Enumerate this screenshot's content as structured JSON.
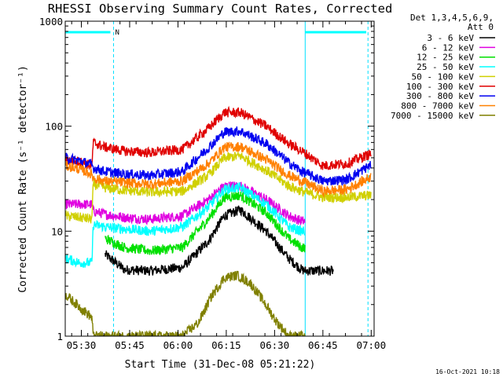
{
  "chart_data": {
    "type": "line",
    "title": "RHESSI Observing Summary Count Rates, Corrected",
    "xlabel": "Start Time (31-Dec-08 05:21:22)",
    "ylabel": "Corrected Count Rate (s⁻¹ detector⁻¹)",
    "yscale": "log",
    "ylim": [
      1,
      1000
    ],
    "xlim_minutes": [
      3.6,
      99.5
    ],
    "y_ticks": [
      {
        "value": 1,
        "label": "1"
      },
      {
        "value": 10,
        "label": "10"
      },
      {
        "value": 100,
        "label": "100"
      },
      {
        "value": 1000,
        "label": "1000"
      }
    ],
    "x_ticks": [
      {
        "minutes": 8.6,
        "label": "05:30"
      },
      {
        "minutes": 23.6,
        "label": "05:45"
      },
      {
        "minutes": 38.6,
        "label": "06:00"
      },
      {
        "minutes": 53.6,
        "label": "06:15"
      },
      {
        "minutes": 68.6,
        "label": "06:30"
      },
      {
        "minutes": 83.6,
        "label": "06:45"
      },
      {
        "minutes": 98.6,
        "label": "07:00"
      }
    ],
    "legend_header": [
      "Det 1,3,4,5,6,9,",
      "Att 0"
    ],
    "timestamp": "16-Oct-2021 10:18",
    "night_flag_label": "N",
    "night_boundaries_minutes": [
      18.6,
      97.6
    ],
    "saa_boundaries_minutes": [
      -2.4,
      78.1
    ],
    "series": [
      {
        "name": "3 - 6 keV",
        "color": "#000000",
        "x": [
          16,
          22,
          30,
          40,
          48,
          53,
          58,
          66,
          73,
          77,
          78.1,
          83.6,
          87
        ],
        "y": [
          6.0,
          4.3,
          4.2,
          4.5,
          8.0,
          14.0,
          16.0,
          10.0,
          5.5,
          4.3,
          4.2,
          4.2,
          4.2
        ]
      },
      {
        "name": "6 - 12 keV",
        "color": "#e000e0",
        "x": [
          -2.4,
          3.6,
          8,
          11.9,
          12.3,
          16,
          22,
          30,
          40,
          48,
          53,
          58,
          66,
          73,
          77,
          78.1
        ],
        "y": [
          18,
          18,
          18,
          18,
          15.5,
          14.5,
          13.5,
          13,
          14,
          20,
          27,
          27,
          20,
          14,
          12.5,
          12.5
        ]
      },
      {
        "name": "12 - 25 keV",
        "color": "#00e000",
        "x": [
          16,
          22,
          30,
          40,
          48,
          53,
          58,
          66,
          73,
          77,
          78.1
        ],
        "y": [
          8.5,
          7.0,
          6.5,
          7.0,
          13.0,
          21.0,
          22.0,
          15.0,
          8.5,
          7.0,
          7.0
        ]
      },
      {
        "name": "25 - 50 keV",
        "color": "#00ffff",
        "x": [
          -2.4,
          3.6,
          8,
          11.9,
          12.3,
          16,
          22,
          30,
          40,
          48,
          53,
          58,
          66,
          73,
          77,
          78.1
        ],
        "y": [
          6,
          5.5,
          5,
          5,
          11.5,
          11,
          10.5,
          10,
          11,
          17,
          25,
          26,
          18,
          11,
          10,
          10
        ]
      },
      {
        "name": "50 - 100 keV",
        "color": "#d0d000",
        "x": [
          -2.4,
          3.6,
          8,
          11.9,
          12.3,
          16,
          22,
          30,
          40,
          48,
          53,
          58,
          66,
          73,
          77,
          78.1,
          83.6,
          91,
          98.6
        ],
        "y": [
          14,
          14,
          13.5,
          13,
          28,
          26,
          24.5,
          23.5,
          24,
          34,
          50,
          52,
          38,
          27,
          24,
          23.5,
          21,
          21,
          22
        ]
      },
      {
        "name": "100 - 300 keV",
        "color": "#e00000",
        "x": [
          -2.4,
          3.6,
          8,
          11.9,
          12.3,
          16,
          22,
          30,
          40,
          48,
          53,
          58,
          66,
          73,
          77,
          78.1,
          83.6,
          91,
          98.6
        ],
        "y": [
          45,
          48,
          46,
          42,
          70,
          63,
          58,
          56,
          60,
          95,
          135,
          135,
          100,
          68,
          58,
          55,
          42,
          44,
          55
        ]
      },
      {
        "name": "300 - 800 keV",
        "color": "#0000f0",
        "x": [
          -2.4,
          3.6,
          8,
          11.9,
          12.3,
          16,
          22,
          30,
          40,
          48,
          53,
          58,
          66,
          73,
          77,
          78.1,
          83.6,
          91,
          98.6
        ],
        "y": [
          48,
          50,
          47,
          43,
          40,
          37,
          35,
          34,
          37,
          62,
          88,
          90,
          68,
          45,
          37,
          36,
          30,
          31,
          43
        ]
      },
      {
        "name": "800 - 7000 keV",
        "color": "#ff8000",
        "x": [
          -2.4,
          3.6,
          8,
          11.9,
          12.3,
          16,
          22,
          30,
          40,
          48,
          53,
          58,
          66,
          73,
          77,
          78.1,
          83.6,
          91,
          98.6
        ],
        "y": [
          40,
          42,
          39,
          35,
          32,
          30,
          29,
          28,
          30,
          44,
          63,
          64,
          48,
          34,
          30,
          29,
          24,
          25,
          33
        ]
      },
      {
        "name": "7000 - 15000 keV",
        "color": "#808000",
        "x": [
          -2.4,
          3.6,
          8,
          11.9,
          12.3,
          16,
          22,
          30,
          40,
          45,
          49,
          53,
          57,
          61,
          65,
          69,
          73,
          78
        ],
        "y": [
          2.6,
          2.5,
          1.9,
          1.5,
          1,
          1,
          1,
          1,
          1,
          1.35,
          2.4,
          3.6,
          3.8,
          3.2,
          2.2,
          1.4,
          1,
          1
        ]
      }
    ]
  }
}
